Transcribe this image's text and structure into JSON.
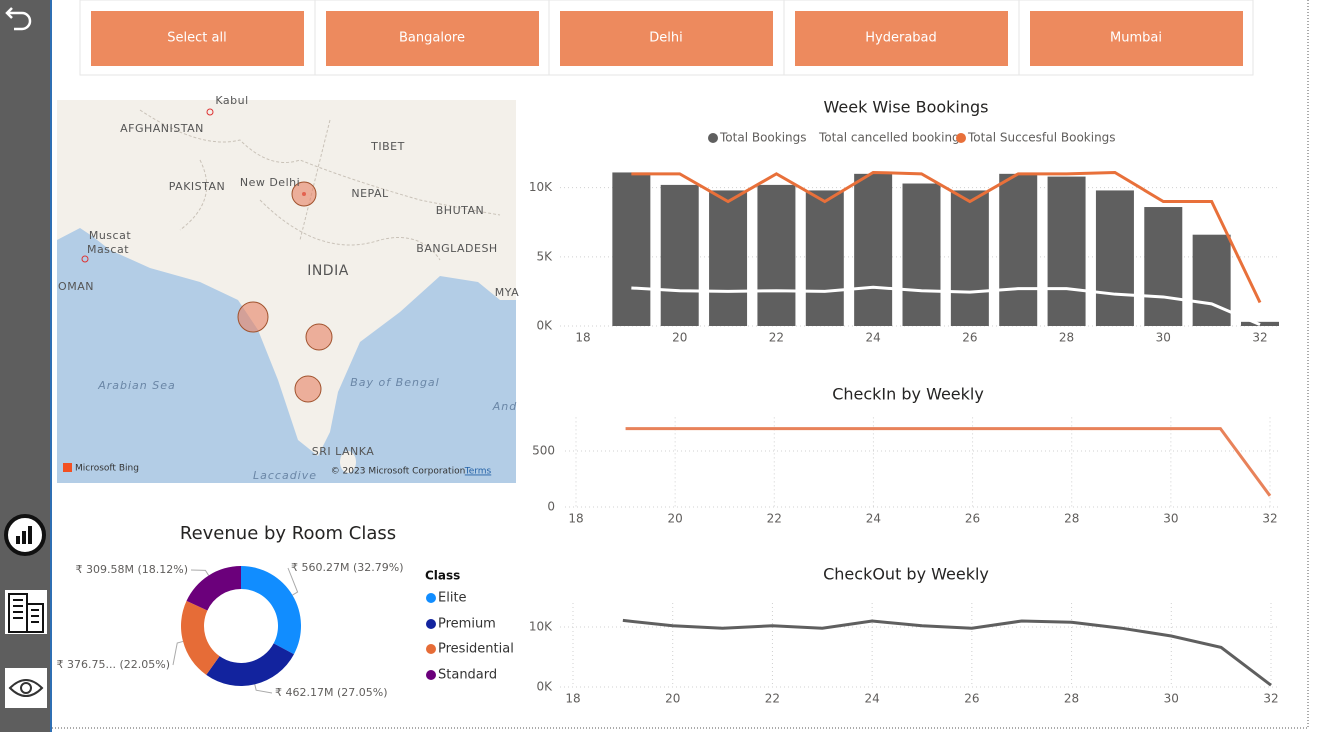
{
  "buttons": [
    "Select all",
    "Bangalore",
    "Delhi",
    "Hyderabad",
    "Mumbai"
  ],
  "map": {
    "labels": [
      "Kabul",
      "AFGHANISTAN",
      "TIBET",
      "PAKISTAN",
      "New Delhi",
      "NEPAL",
      "BHUTAN",
      "Muscat",
      "Mascat",
      "BANGLADESH",
      "INDIA",
      "OMAN",
      "MYA",
      "Arabian Sea",
      "Bay of Bengal",
      "And",
      "SRI LANKA",
      "Laccadive"
    ],
    "brand": "Microsoft Bing",
    "copyright": "© 2023 Microsoft Corporation",
    "terms": "Terms"
  },
  "chart_data": [
    {
      "type": "combo",
      "title": "Week Wise Bookings",
      "x": [
        19,
        20,
        21,
        22,
        23,
        24,
        25,
        26,
        27,
        28,
        29,
        30,
        31,
        32
      ],
      "series": [
        {
          "name": "Total Bookings",
          "type": "bar",
          "color": "#5f5f5f",
          "values": [
            11100,
            10200,
            9800,
            10200,
            9800,
            11000,
            10300,
            9800,
            11000,
            10800,
            9800,
            8600,
            6600,
            300
          ]
        },
        {
          "name": "Total cancelled bookings",
          "type": "line",
          "color": "#ffffff",
          "values": [
            2750,
            2550,
            2500,
            2550,
            2500,
            2800,
            2550,
            2450,
            2700,
            2700,
            2300,
            2100,
            1600,
            100
          ]
        },
        {
          "name": "Total Succesful Bookings",
          "type": "line",
          "color": "#e8703a",
          "values": [
            11000,
            11000,
            9000,
            11000,
            9000,
            11100,
            11000,
            9000,
            11000,
            11000,
            11100,
            9000,
            9000,
            1700
          ]
        }
      ],
      "xlim": [
        18,
        32
      ],
      "xticks": [
        18,
        20,
        22,
        24,
        26,
        28,
        30,
        32
      ],
      "ylim": [
        0,
        12000
      ],
      "yticks": [
        {
          "value": 0,
          "label": "0K"
        },
        {
          "value": 5000,
          "label": "5K"
        },
        {
          "value": 10000,
          "label": "10K"
        }
      ],
      "grid": {
        "x": false,
        "y": true
      }
    },
    {
      "type": "line",
      "title": "CheckIn by Weekly",
      "x": [
        19,
        20,
        21,
        22,
        23,
        24,
        25,
        26,
        27,
        28,
        29,
        30,
        31,
        32
      ],
      "series": [
        {
          "name": "CheckIn",
          "color": "#e8825a",
          "values": [
            700,
            700,
            700,
            700,
            700,
            700,
            700,
            700,
            700,
            700,
            700,
            700,
            700,
            100
          ]
        }
      ],
      "xlim": [
        18,
        32
      ],
      "xticks": [
        18,
        20,
        22,
        24,
        26,
        28,
        30,
        32
      ],
      "ylim": [
        0,
        800
      ],
      "yticks": [
        0,
        500
      ],
      "grid": {
        "x": true,
        "y": true
      }
    },
    {
      "type": "line",
      "title": "CheckOut by Weekly",
      "x": [
        19,
        20,
        21,
        22,
        23,
        24,
        25,
        26,
        27,
        28,
        29,
        30,
        31,
        32
      ],
      "series": [
        {
          "name": "CheckOut",
          "color": "#5f5f5f",
          "values": [
            11100,
            10200,
            9800,
            10200,
            9800,
            11000,
            10200,
            9800,
            11000,
            10800,
            9800,
            8500,
            6600,
            300
          ]
        }
      ],
      "xlim": [
        18,
        32
      ],
      "xticks": [
        18,
        20,
        22,
        24,
        26,
        28,
        30,
        32
      ],
      "ylim": [
        0,
        14000
      ],
      "yticks": [
        {
          "value": 0,
          "label": "0K"
        },
        {
          "value": 10000,
          "label": "10K"
        }
      ],
      "grid": {
        "x": true,
        "y": true
      }
    },
    {
      "type": "donut",
      "title": "Revenue by Room Class",
      "legend_title": "Class",
      "categories": [
        "Elite",
        "Premium",
        "Presidential",
        "Standard"
      ],
      "values": [
        560.27,
        462.17,
        376.75,
        309.58
      ],
      "value_labels": [
        "₹ 560.27M (32.79%)",
        "₹ 462.17M (27.05%)",
        "₹ 376.75... (22.05%)",
        "₹ 309.58M (18.12%)"
      ],
      "colors": [
        "#118dff",
        "#12239e",
        "#e66c37",
        "#6b007b"
      ]
    }
  ]
}
